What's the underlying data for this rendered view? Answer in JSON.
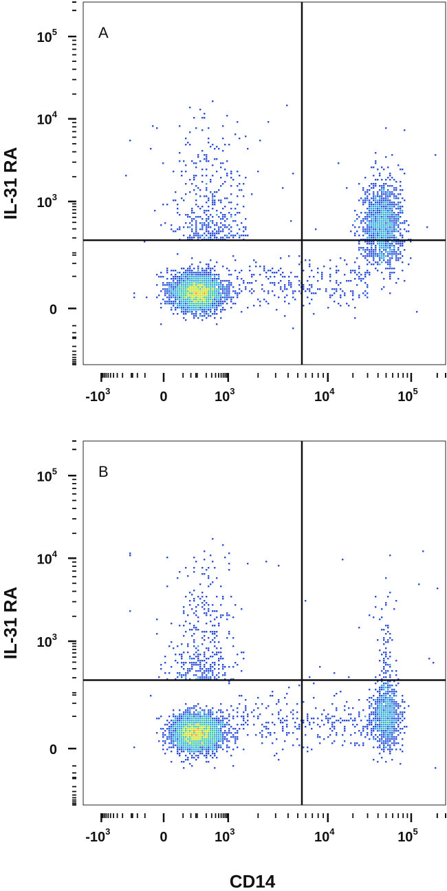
{
  "figure": {
    "shared_xlabel": "CD14",
    "ylabel": "IL-31 RA"
  },
  "colors": {
    "density_low": "#2c4fd8",
    "density_mid_low": "#30a8e0",
    "density_mid": "#3ec9a0",
    "density_mid_high": "#c9e01e",
    "density_high": "#ff8a00",
    "density_peak": "#e8141e",
    "gate_line": "#111111",
    "frame": "#222222"
  },
  "chart_data": [
    {
      "type": "scatter",
      "subtype": "flow-cytometry-density-dot-plot",
      "panel_label": "A",
      "xlabel": "CD14",
      "ylabel": "IL-31 RA",
      "x_scale": "biexponential",
      "y_scale": "biexponential",
      "xlim": [
        -2000,
        250000
      ],
      "ylim": [
        -900,
        250000
      ],
      "x_ticks": [
        {
          "base": "-10",
          "exp": "3",
          "value": -1000
        },
        {
          "base": "0",
          "exp": "",
          "value": 0
        },
        {
          "base": "10",
          "exp": "3",
          "value": 1000
        },
        {
          "base": "10",
          "exp": "4",
          "value": 10000
        },
        {
          "base": "10",
          "exp": "5",
          "value": 100000
        }
      ],
      "y_ticks": [
        {
          "base": "0",
          "exp": "",
          "value": 0
        },
        {
          "base": "10",
          "exp": "3",
          "value": 1000
        },
        {
          "base": "10",
          "exp": "4",
          "value": 10000
        },
        {
          "base": "10",
          "exp": "5",
          "value": 100000
        }
      ],
      "quadrant_gate": {
        "x": 5500,
        "y": 180
      },
      "populations": [
        {
          "name": "",
          "x_center": 100,
          "y_center": 10,
          "count": "dense"
        },
        {
          "name": "",
          "x_center": 45000,
          "y_center": 350,
          "count": "moderate"
        }
      ]
    },
    {
      "type": "scatter",
      "subtype": "flow-cytometry-density-dot-plot",
      "panel_label": "B",
      "xlabel": "CD14",
      "ylabel": "IL-31 RA",
      "x_scale": "biexponential",
      "y_scale": "biexponential",
      "xlim": [
        -2000,
        250000
      ],
      "ylim": [
        -900,
        250000
      ],
      "x_ticks": [
        {
          "base": "-10",
          "exp": "3",
          "value": -1000
        },
        {
          "base": "0",
          "exp": "",
          "value": 0
        },
        {
          "base": "10",
          "exp": "3",
          "value": 1000
        },
        {
          "base": "10",
          "exp": "4",
          "value": 10000
        },
        {
          "base": "10",
          "exp": "5",
          "value": 100000
        }
      ],
      "y_ticks": [
        {
          "base": "0",
          "exp": "",
          "value": 0
        },
        {
          "base": "10",
          "exp": "3",
          "value": 1000
        },
        {
          "base": "10",
          "exp": "4",
          "value": 10000
        },
        {
          "base": "10",
          "exp": "5",
          "value": 100000
        }
      ],
      "quadrant_gate": {
        "x": 5500,
        "y": 180
      },
      "populations": [
        {
          "name": "",
          "x_center": 100,
          "y_center": 10,
          "count": "dense"
        },
        {
          "name": "",
          "x_center": 50000,
          "y_center": 30,
          "count": "moderate"
        }
      ]
    }
  ]
}
